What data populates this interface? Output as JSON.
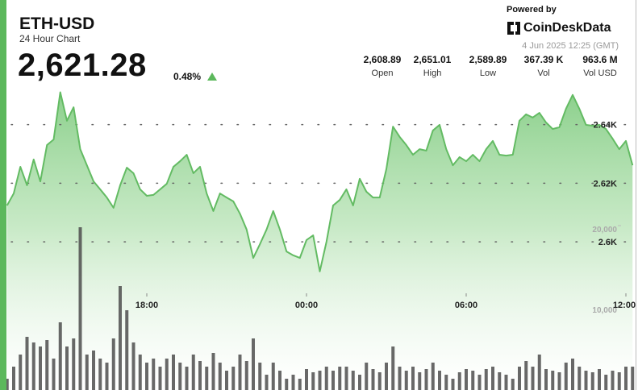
{
  "header": {
    "symbol": "ETH-USD",
    "subtitle": "24 Hour Chart",
    "price": "2,621.28",
    "change": "0.48%",
    "powered_by": "Powered by",
    "brand": "CoinDeskData",
    "timestamp": "4 Jun 2025 12:25 (GMT)",
    "stats": [
      {
        "value": "2,608.89",
        "label": "Open"
      },
      {
        "value": "2,651.01",
        "label": "High"
      },
      {
        "value": "2,589.89",
        "label": "Low"
      },
      {
        "value": "367.39 K",
        "label": "Vol"
      },
      {
        "value": "963.6 M",
        "label": "Vol USD"
      }
    ]
  },
  "chart_data": {
    "type": "area",
    "x": [
      12.75,
      13,
      13.25,
      13.5,
      13.75,
      14,
      14.25,
      14.5,
      14.75,
      15,
      15.25,
      15.5,
      15.75,
      16,
      16.25,
      16.5,
      16.75,
      17,
      17.25,
      17.5,
      17.75,
      18,
      18.25,
      18.5,
      18.75,
      19,
      19.25,
      19.5,
      19.75,
      20,
      20.25,
      20.5,
      20.75,
      21,
      21.25,
      21.5,
      21.75,
      22,
      22.25,
      22.5,
      22.75,
      23,
      23.25,
      23.5,
      23.75,
      24,
      24.25,
      24.5,
      24.75,
      25,
      25.25,
      25.5,
      25.75,
      26,
      26.25,
      26.5,
      26.75,
      27,
      27.25,
      27.5,
      27.75,
      28,
      28.25,
      28.5,
      28.75,
      29,
      29.25,
      29.5,
      29.75,
      30,
      30.25,
      30.5,
      30.75,
      31,
      31.25,
      31.5,
      31.75,
      32,
      32.25,
      32.5,
      32.75,
      33,
      33.25,
      33.5,
      33.75,
      34,
      34.25,
      34.5,
      34.75,
      35,
      35.25,
      35.5,
      35.75,
      36,
      36.25
    ],
    "xlim": [
      12.5,
      36.25
    ],
    "xticks": [
      {
        "value": 18,
        "label": "18:00"
      },
      {
        "value": 24,
        "label": "00:00"
      },
      {
        "value": 30,
        "label": "06:00"
      },
      {
        "value": 36,
        "label": "12:00"
      }
    ],
    "ylim": [
      2550,
      2655
    ],
    "yticks": [
      {
        "value": 2640,
        "label": "2.64K"
      },
      {
        "value": 2620,
        "label": "2.62K"
      },
      {
        "value": 2600,
        "label": "2.6K"
      }
    ],
    "y2lim": [
      0,
      30000
    ],
    "y2ticks": [
      {
        "value": 20000,
        "label": "20,000"
      },
      {
        "value": 10000,
        "label": "10,000"
      }
    ],
    "grid": true,
    "series": [
      {
        "color": "#63bb63",
        "values": [
          2612.4,
          2616.5,
          2625.6,
          2619.3,
          2628.1,
          2620.6,
          2633.0,
          2634.9,
          2651.0,
          2641.3,
          2645.9,
          2631.6,
          2626.1,
          2620.6,
          2617.9,
          2615.1,
          2611.6,
          2619.3,
          2625.3,
          2623.4,
          2617.9,
          2615.7,
          2616.0,
          2617.9,
          2619.8,
          2625.6,
          2627.5,
          2629.7,
          2623.4,
          2625.6,
          2616.5,
          2610.5,
          2616.5,
          2615.1,
          2613.8,
          2609.6,
          2604.2,
          2594.5,
          2599.2,
          2604.2,
          2610.5,
          2604.2,
          2596.7,
          2595.4,
          2594.5,
          2600.6,
          2602.2,
          2589.9,
          2600.0,
          2612.4,
          2614.3,
          2617.9,
          2612.4,
          2621.5,
          2617.1,
          2615.1,
          2615.1,
          2624.8,
          2639.3,
          2635.8,
          2633.0,
          2629.7,
          2631.6,
          2631.1,
          2638.0,
          2639.9,
          2631.6,
          2626.1,
          2628.9,
          2627.5,
          2629.7,
          2627.5,
          2631.6,
          2634.4,
          2629.7,
          2629.4,
          2629.7,
          2641.3,
          2643.5,
          2642.4,
          2644.0,
          2640.7,
          2638.5,
          2639.1,
          2645.4,
          2650.1,
          2645.4,
          2639.9,
          2639.6,
          2639.9,
          2638.5,
          2635.2,
          2631.6,
          2634.4,
          2626.1
        ]
      },
      {
        "type": "bar",
        "axis": "y2",
        "color": "#4d4d4d",
        "values": [
          1400,
          2900,
          4400,
          6600,
          5900,
          5400,
          6200,
          3900,
          8400,
          5400,
          6400,
          20200,
          4400,
          4900,
          3900,
          3400,
          6400,
          12900,
          9900,
          5900,
          4400,
          3400,
          3900,
          2900,
          3900,
          4400,
          3400,
          2900,
          4400,
          3600,
          2900,
          4600,
          3400,
          2400,
          2900,
          4400,
          3600,
          6400,
          3400,
          1900,
          3400,
          2400,
          1400,
          1900,
          1400,
          2600,
          2200,
          2400,
          2900,
          2400,
          2900,
          2900,
          2400,
          1900,
          3400,
          2600,
          2200,
          3400,
          5400,
          2900,
          2400,
          2900,
          2200,
          2600,
          3400,
          2400,
          1900,
          1400,
          2200,
          2600,
          2400,
          1900,
          2600,
          2900,
          2200,
          1900,
          1400,
          2900,
          3600,
          2900,
          4400,
          2600,
          2400,
          2200,
          3400,
          3900,
          2900,
          2400,
          2200,
          2600,
          1900,
          2400,
          2200,
          2900,
          2900
        ]
      }
    ]
  }
}
